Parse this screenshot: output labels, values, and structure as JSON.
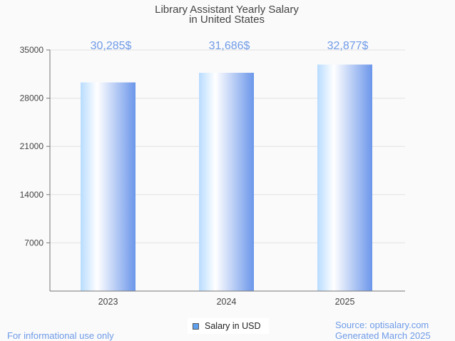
{
  "chart_data": {
    "type": "bar",
    "title": "Library Assistant Yearly Salary",
    "subtitle": "in United States",
    "categories": [
      "2023",
      "2024",
      "2025"
    ],
    "values": [
      30285,
      31686,
      32877
    ],
    "value_labels": [
      "30,285$",
      "31,686$",
      "32,877$"
    ],
    "xlabel": "",
    "ylabel": "",
    "ylim": [
      0,
      35000
    ],
    "yticks": [
      7000,
      14000,
      21000,
      28000,
      35000
    ],
    "ytick_labels": [
      "7000",
      "14000",
      "21000",
      "28000",
      "35000"
    ],
    "grid": true,
    "legend": {
      "label": "Salary in USD",
      "position": "bottom-center"
    },
    "colors": {
      "bar_light": "#b8dcff",
      "bar_mid": "#ffffff",
      "bar_dark": "#6b96ea",
      "value_label": "#6f9be8"
    }
  },
  "footer": {
    "disclaimer": "For informational use only",
    "source": "Source: optisalary.com",
    "generated": "Generated March 2025"
  }
}
